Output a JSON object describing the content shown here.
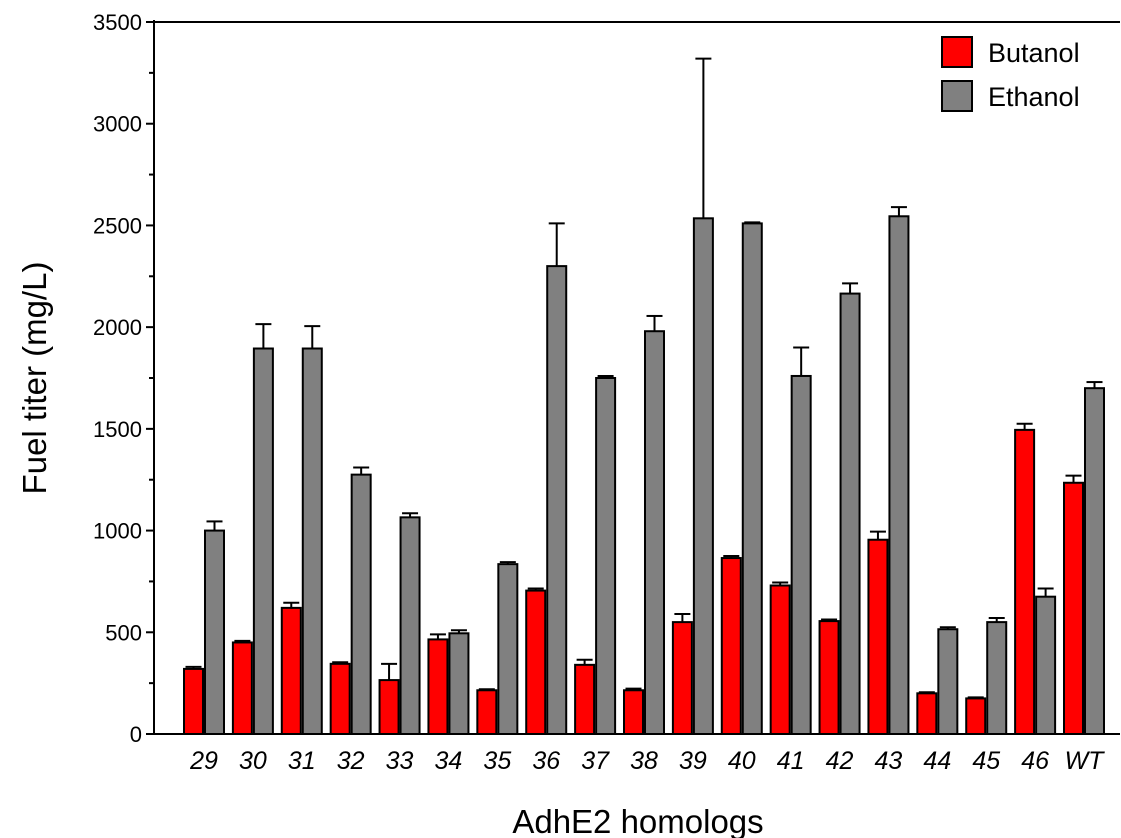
{
  "chart_data": {
    "type": "bar",
    "title": "",
    "xlabel": "AdhE2 homologs",
    "ylabel": "Fuel titer (mg/L)",
    "ylim": [
      0,
      3500
    ],
    "yticks": [
      0,
      500,
      1000,
      1500,
      2000,
      2500,
      3000,
      3500
    ],
    "categories": [
      "29",
      "30",
      "31",
      "32",
      "33",
      "34",
      "35",
      "36",
      "37",
      "38",
      "39",
      "40",
      "41",
      "42",
      "43",
      "44",
      "45",
      "46",
      "WT"
    ],
    "series": [
      {
        "name": "Butanol",
        "color": "#ff0000",
        "values": [
          320,
          450,
          620,
          345,
          265,
          465,
          215,
          705,
          340,
          215,
          550,
          865,
          730,
          555,
          955,
          200,
          175,
          1495,
          1235
        ],
        "errors": [
          10,
          8,
          25,
          8,
          80,
          25,
          5,
          10,
          25,
          8,
          40,
          10,
          15,
          8,
          40,
          5,
          5,
          30,
          35
        ]
      },
      {
        "name": "Ethanol",
        "color": "#808080",
        "values": [
          1000,
          1895,
          1895,
          1275,
          1065,
          495,
          835,
          2300,
          1750,
          1980,
          2535,
          2510,
          1760,
          2165,
          2545,
          515,
          550,
          675,
          1700
        ],
        "errors": [
          45,
          120,
          110,
          35,
          20,
          15,
          10,
          210,
          10,
          75,
          785,
          5,
          140,
          50,
          45,
          10,
          20,
          40,
          30
        ]
      }
    ],
    "legend_position": "top-right",
    "grid": false
  }
}
